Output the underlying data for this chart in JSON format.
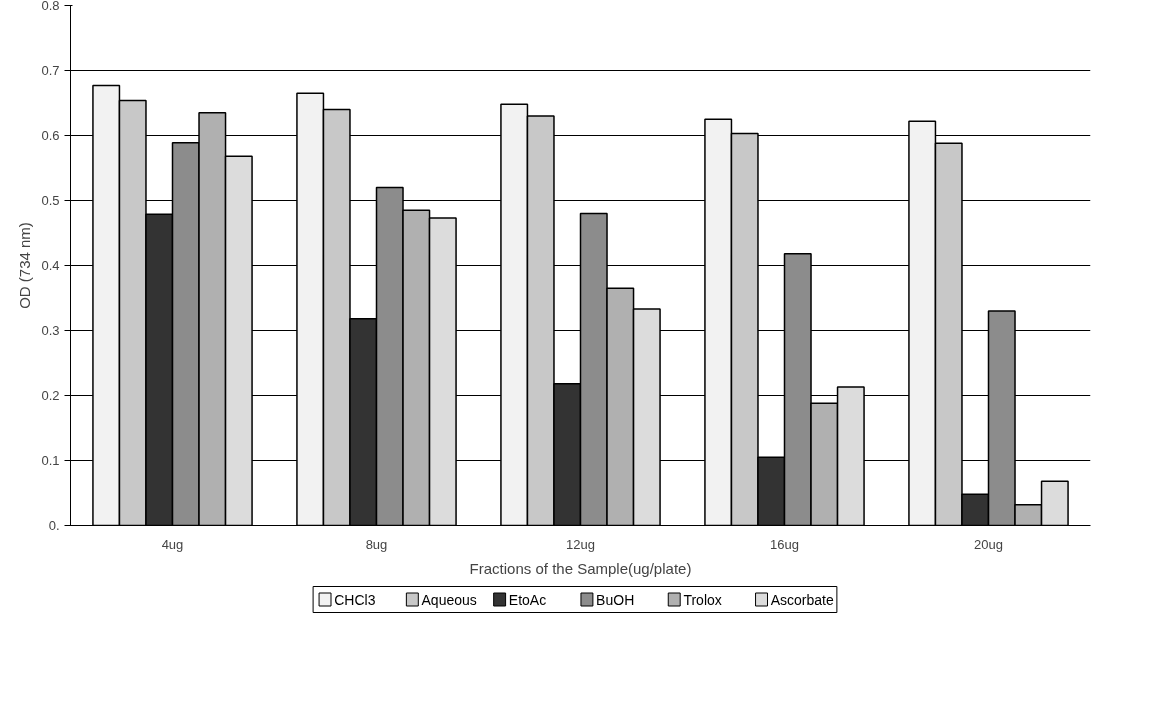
{
  "chart_data": {
    "type": "bar",
    "xlabel": "Fractions of the Sample(ug/plate)",
    "ylabel": "OD (734 nm)",
    "categories": [
      "4ug",
      "8ug",
      "12ug",
      "16ug",
      "20ug"
    ],
    "series": [
      {
        "name": "CHCl3",
        "color": "#f2f2f2",
        "values": [
          0.677,
          0.665,
          0.648,
          0.625,
          0.622
        ]
      },
      {
        "name": "Aqueous",
        "color": "#c8c8c8",
        "values": [
          0.654,
          0.64,
          0.63,
          0.603,
          0.588
        ]
      },
      {
        "name": "EtoAc",
        "color": "#333333",
        "values": [
          0.479,
          0.318,
          0.218,
          0.105,
          0.048
        ]
      },
      {
        "name": "BuOH",
        "color": "#8c8c8c",
        "values": [
          0.589,
          0.52,
          0.48,
          0.418,
          0.33
        ]
      },
      {
        "name": "Trolox",
        "color": "#b0b0b0",
        "values": [
          0.635,
          0.485,
          0.365,
          0.188,
          0.032
        ]
      },
      {
        "name": "Ascorbate",
        "color": "#dcdcdc",
        "values": [
          0.568,
          0.473,
          0.333,
          0.213,
          0.068
        ]
      }
    ],
    "ylim": [
      0,
      0.8
    ],
    "yticks": [
      {
        "value": 0,
        "label": "0."
      },
      0.1,
      0.2,
      0.3,
      0.4,
      0.5,
      0.6,
      0.7,
      0.8
    ],
    "grid": "y",
    "legend": "bottom"
  }
}
